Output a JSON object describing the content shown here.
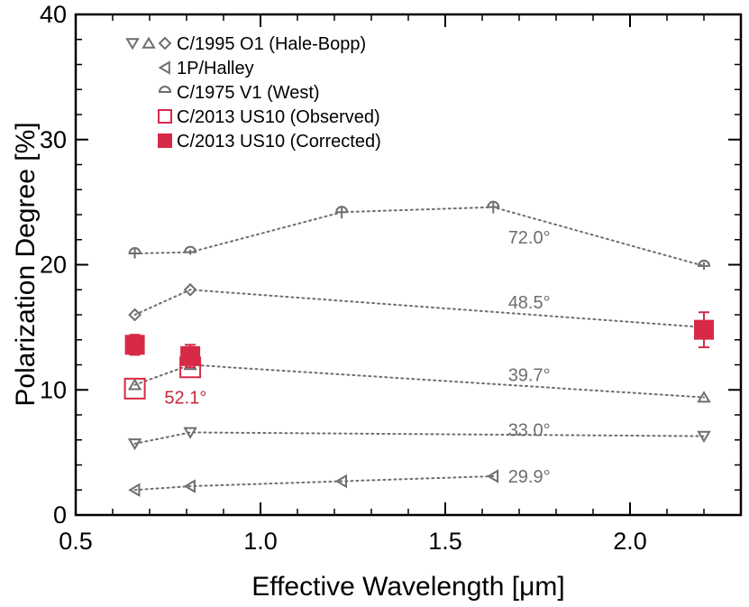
{
  "chart_data": {
    "type": "scatter",
    "xlabel": "Effective Wavelength [μm]",
    "ylabel": "Polarization Degree [%]",
    "xlim": [
      0.5,
      2.3
    ],
    "ylim": [
      0,
      40
    ],
    "xticks": [
      0.5,
      1.0,
      1.5,
      2.0
    ],
    "yticks": [
      0,
      10,
      20,
      30,
      40
    ],
    "xtick_labels": [
      "0.5",
      "1.0",
      "1.5",
      "2.0"
    ],
    "ytick_labels": [
      "0",
      "10",
      "20",
      "30",
      "40"
    ],
    "colors": {
      "gray": "#6e6e6e",
      "red": "#d62a46",
      "red_text": "#c8283c"
    },
    "legend": [
      {
        "label": "C/1995 O1 (Hale-Bopp)",
        "markers": [
          "triangle-down",
          "triangle-up",
          "diamond"
        ],
        "color": "#6e6e6e"
      },
      {
        "label": "1P/Halley",
        "markers": [
          "triangle-left"
        ],
        "color": "#6e6e6e"
      },
      {
        "label": "C/1975 V1 (West)",
        "markers": [
          "half-circle"
        ],
        "color": "#6e6e6e"
      },
      {
        "label": "C/2013 US10 (Observed)",
        "markers": [
          "square-open"
        ],
        "color": "#d62a46"
      },
      {
        "label": "C/2013 US10 (Corrected)",
        "markers": [
          "square-filled"
        ],
        "color": "#d62a46"
      }
    ],
    "series": [
      {
        "name": "C/1975 V1 (West)",
        "marker": "half-circle",
        "color": "#6e6e6e",
        "annotation": "72.0°",
        "x": [
          0.66,
          0.81,
          1.22,
          1.63,
          2.2
        ],
        "y": [
          20.9,
          21.0,
          24.2,
          24.6,
          19.9
        ],
        "yerr": [
          0.4,
          0.2,
          0.5,
          0.5,
          0.3
        ]
      },
      {
        "name": "C/1995 O1 (Hale-Bopp) 48.5°",
        "marker": "diamond",
        "color": "#6e6e6e",
        "annotation": "48.5°",
        "x": [
          0.66,
          0.81,
          2.2
        ],
        "y": [
          16.0,
          18.0,
          15.0
        ],
        "yerr": [
          0,
          0,
          0
        ]
      },
      {
        "name": "C/1995 O1 (Hale-Bopp) 39.7°",
        "marker": "triangle-up",
        "color": "#6e6e6e",
        "annotation": "39.7°",
        "x": [
          0.66,
          0.81,
          2.2
        ],
        "y": [
          10.4,
          12.0,
          9.4
        ],
        "yerr": [
          0,
          0,
          0
        ]
      },
      {
        "name": "C/1995 O1 (Hale-Bopp) 33.0°",
        "marker": "triangle-down",
        "color": "#6e6e6e",
        "annotation": "33.0°",
        "x": [
          0.66,
          0.81,
          2.2
        ],
        "y": [
          5.7,
          6.6,
          6.3
        ],
        "yerr": [
          0,
          0,
          0
        ]
      },
      {
        "name": "1P/Halley",
        "marker": "triangle-left",
        "color": "#6e6e6e",
        "annotation": "29.9°",
        "x": [
          0.66,
          0.81,
          1.22,
          1.63
        ],
        "y": [
          2.0,
          2.3,
          2.7,
          3.1
        ],
        "yerr": [
          0,
          0,
          0,
          0
        ]
      },
      {
        "name": "C/2013 US10 (Observed)",
        "marker": "square-open",
        "color": "#d62a46",
        "annotation": "52.1°",
        "x": [
          0.66,
          0.81
        ],
        "y": [
          10.1,
          11.8
        ],
        "yerr": [
          0,
          0
        ]
      },
      {
        "name": "C/2013 US10 (Corrected)",
        "marker": "square-filled",
        "color": "#d62a46",
        "annotation": "",
        "x": [
          0.66,
          0.81,
          2.2
        ],
        "y": [
          13.6,
          12.7,
          14.8
        ],
        "yerr": [
          0.8,
          0.9,
          1.4
        ]
      }
    ]
  }
}
